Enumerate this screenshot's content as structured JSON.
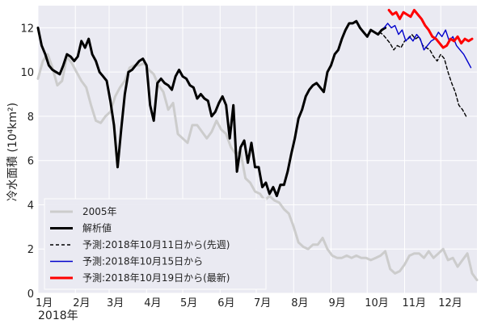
{
  "chart_data": {
    "type": "line",
    "ylabel": "冷水面積 (10⁴km²)",
    "xlabel": "2018年",
    "ylim": [
      0,
      13
    ],
    "xlim_days": [
      0,
      364
    ],
    "yticks": [
      "0",
      "2",
      "4",
      "6",
      "8",
      "10",
      "12"
    ],
    "ytick_values": [
      0,
      2,
      4,
      6,
      8,
      10,
      12
    ],
    "xticks": [
      "1月",
      "2月",
      "3月",
      "4月",
      "5月",
      "6月",
      "7月",
      "8月",
      "9月",
      "10月",
      "11月",
      "12月"
    ],
    "xtick_days": [
      0,
      31,
      59,
      90,
      120,
      151,
      181,
      212,
      243,
      273,
      304,
      334
    ],
    "grid": true,
    "legend_position": "lower-left",
    "series": [
      {
        "name": "2005年",
        "color": "#cccccc",
        "style": "solid",
        "x": [
          0,
          4,
          8,
          12,
          16,
          20,
          24,
          28,
          32,
          36,
          40,
          44,
          48,
          52,
          56,
          60,
          64,
          68,
          72,
          76,
          80,
          84,
          88,
          92,
          96,
          100,
          104,
          108,
          112,
          116,
          120,
          124,
          128,
          132,
          136,
          140,
          144,
          148,
          152,
          156,
          160,
          164,
          168,
          172,
          176,
          180,
          184,
          188,
          192,
          196,
          200,
          204,
          208,
          212,
          216,
          220,
          224,
          228,
          232,
          236,
          240,
          244,
          248,
          252,
          256,
          260,
          264,
          268,
          272,
          276,
          280,
          284,
          288,
          292,
          296,
          300,
          304,
          308,
          312,
          316,
          320,
          324,
          328,
          332,
          336,
          340,
          344,
          348,
          352,
          356,
          360,
          364
        ],
        "y": [
          9.7,
          10.5,
          10.8,
          10.2,
          9.4,
          9.6,
          10.7,
          10.4,
          10.0,
          9.6,
          9.3,
          8.5,
          7.8,
          7.7,
          8.0,
          8.2,
          8.9,
          9.3,
          9.6,
          10.2,
          10.3,
          10.3,
          10.4,
          10.1,
          9.9,
          9.4,
          9.1,
          8.3,
          8.6,
          7.2,
          7.0,
          6.8,
          7.6,
          7.6,
          7.3,
          7.0,
          7.3,
          7.8,
          7.4,
          7.2,
          6.6,
          6.3,
          6.4,
          5.2,
          5.0,
          4.6,
          4.5,
          4.2,
          4.4,
          4.2,
          4.1,
          3.8,
          3.6,
          3.0,
          2.3,
          2.1,
          2.0,
          2.2,
          2.2,
          2.5,
          2.0,
          1.7,
          1.6,
          1.6,
          1.7,
          1.6,
          1.7,
          1.6,
          1.6,
          1.5,
          1.6,
          1.7,
          1.9,
          1.1,
          0.9,
          1.0,
          1.3,
          1.7,
          1.8,
          1.8,
          1.6,
          1.9,
          1.6,
          1.8,
          2.0,
          1.5,
          1.6,
          1.2,
          1.5,
          1.8,
          0.9,
          0.6
        ]
      },
      {
        "name": "解析値",
        "color": "#000000",
        "style": "solid",
        "x": [
          0,
          3,
          6,
          9,
          12,
          15,
          18,
          21,
          24,
          27,
          30,
          33,
          36,
          39,
          42,
          45,
          48,
          51,
          54,
          57,
          60,
          63,
          66,
          69,
          72,
          75,
          78,
          81,
          84,
          87,
          90,
          93,
          96,
          99,
          102,
          105,
          108,
          111,
          114,
          117,
          120,
          123,
          126,
          129,
          132,
          135,
          138,
          141,
          144,
          147,
          150,
          153,
          156,
          159,
          162,
          165,
          168,
          171,
          174,
          177,
          180,
          183,
          186,
          189,
          192,
          195,
          198,
          201,
          204,
          207,
          210,
          213,
          216,
          219,
          222,
          225,
          228,
          231,
          234,
          237,
          240,
          243,
          246,
          249,
          252,
          255,
          258,
          261,
          264,
          267,
          270,
          273,
          276,
          279,
          282,
          285,
          288
        ],
        "y": [
          12.0,
          11.2,
          10.8,
          10.3,
          10.1,
          10.0,
          9.9,
          10.3,
          10.8,
          10.7,
          10.5,
          10.7,
          11.4,
          11.1,
          11.5,
          10.8,
          10.5,
          10.0,
          9.8,
          9.6,
          8.7,
          7.6,
          5.7,
          7.4,
          9.0,
          10.0,
          10.1,
          10.3,
          10.5,
          10.6,
          10.3,
          8.5,
          7.8,
          9.5,
          9.7,
          9.5,
          9.4,
          9.2,
          9.8,
          10.1,
          9.8,
          9.7,
          9.4,
          9.3,
          8.8,
          9.0,
          8.8,
          8.7,
          8.0,
          8.2,
          8.6,
          8.9,
          8.5,
          7.0,
          8.5,
          5.5,
          6.6,
          6.9,
          5.9,
          6.8,
          5.7,
          5.7,
          4.8,
          5.0,
          4.5,
          4.8,
          4.4,
          4.9,
          4.9,
          5.5,
          6.3,
          7.0,
          7.9,
          8.3,
          8.9,
          9.2,
          9.4,
          9.5,
          9.3,
          9.1,
          10.0,
          10.3,
          10.8,
          11.0,
          11.5,
          11.9,
          12.2,
          12.2,
          12.3,
          12.0,
          11.8,
          11.6,
          11.9,
          11.8,
          11.7,
          11.9,
          12.0
        ]
      },
      {
        "name": "予測:2018年10月11日から(先週)",
        "color": "#000000",
        "style": "dashed",
        "x": [
          283,
          286,
          289,
          292,
          295,
          298,
          301,
          304,
          307,
          310,
          313,
          316,
          319,
          322,
          325,
          328,
          331,
          334,
          337,
          340,
          343,
          346,
          349,
          352,
          355
        ],
        "y": [
          11.8,
          11.7,
          11.5,
          11.3,
          11.0,
          11.2,
          11.1,
          11.4,
          11.5,
          11.7,
          11.5,
          11.6,
          11.2,
          11.1,
          11.0,
          10.7,
          10.5,
          10.8,
          10.6,
          10.0,
          9.5,
          9.1,
          8.5,
          8.3,
          8.0
        ]
      },
      {
        "name": "予測:2018年10月15日から",
        "color": "#0000cc",
        "style": "solid",
        "x": [
          287,
          290,
          293,
          296,
          299,
          302,
          305,
          308,
          311,
          314,
          317,
          320,
          323,
          326,
          329,
          332,
          335,
          338,
          341,
          344,
          347,
          350,
          353,
          356,
          359
        ],
        "y": [
          12.0,
          12.2,
          12.0,
          12.1,
          11.7,
          11.9,
          11.4,
          11.6,
          11.4,
          11.7,
          11.5,
          11.0,
          11.2,
          11.4,
          11.5,
          11.8,
          11.6,
          11.9,
          11.4,
          11.6,
          11.2,
          11.0,
          10.8,
          10.5,
          10.2
        ]
      },
      {
        "name": "予測:2018年10月19日から(最新)",
        "color": "#ff0000",
        "style": "solid",
        "x": [
          291,
          294,
          297,
          300,
          303,
          306,
          309,
          312,
          315,
          318,
          321,
          324,
          327,
          330,
          333,
          336,
          339,
          342,
          345,
          348,
          351,
          354,
          357,
          360
        ],
        "y": [
          12.8,
          12.6,
          12.7,
          12.4,
          12.7,
          12.6,
          12.5,
          12.8,
          12.6,
          12.4,
          12.1,
          11.9,
          11.6,
          11.5,
          11.3,
          11.1,
          11.2,
          11.5,
          11.4,
          11.6,
          11.3,
          11.5,
          11.4,
          11.5
        ]
      }
    ]
  }
}
